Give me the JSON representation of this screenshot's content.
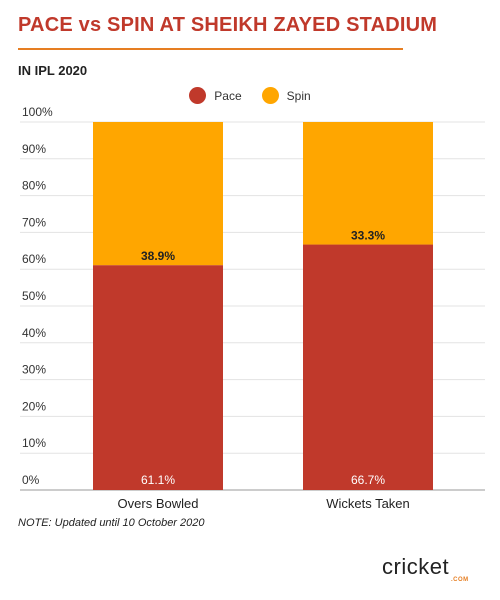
{
  "header": {
    "title": "PACE vs SPIN AT SHEIKH ZAYED STADIUM",
    "subtitle": "IN IPL 2020"
  },
  "footer": {
    "note": "NOTE: Updated until 10 October 2020",
    "logo_text": "cricket",
    "logo_subtext": ".COM"
  },
  "colors": {
    "title": "#c0392b",
    "pace": "#c0392b",
    "spin": "#ffa600",
    "accent": "#e67e22"
  },
  "chart_data": {
    "type": "bar",
    "stacked": true,
    "categories": [
      "Overs Bowled",
      "Wickets Taken"
    ],
    "series": [
      {
        "name": "Pace",
        "values": [
          61.1,
          66.7
        ],
        "labels": [
          "61.1%",
          "66.7%"
        ],
        "color": "#c0392b"
      },
      {
        "name": "Spin",
        "values": [
          38.9,
          33.3
        ],
        "labels": [
          "38.9%",
          "33.3%"
        ],
        "color": "#ffa600"
      }
    ],
    "ylim": [
      0,
      100
    ],
    "yticks": [
      "0%",
      "10%",
      "20%",
      "30%",
      "40%",
      "50%",
      "60%",
      "70%",
      "80%",
      "90%",
      "100%"
    ],
    "grid": true,
    "legend": "top-center"
  }
}
